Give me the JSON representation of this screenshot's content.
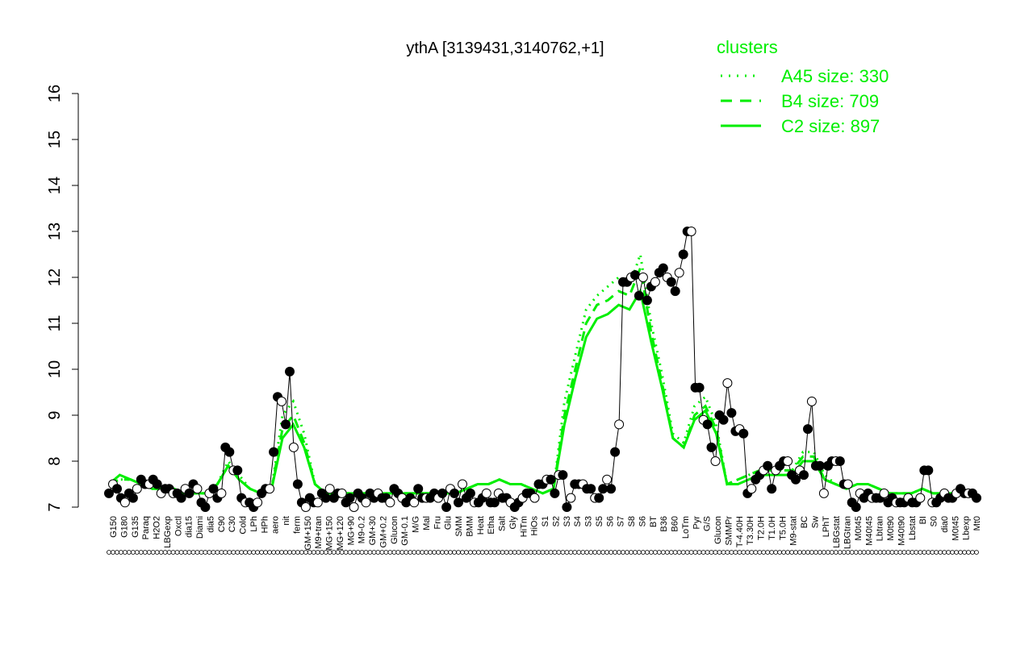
{
  "chart_data": {
    "type": "line",
    "title": "ythA [3139431,3140762,+1]",
    "xlabel": "",
    "ylabel": "",
    "ylim": [
      7,
      16
    ],
    "yticks": [
      7,
      8,
      9,
      10,
      11,
      12,
      13,
      14,
      15,
      16
    ],
    "grid": false,
    "legend": {
      "placement": "top-right",
      "title": "clusters",
      "entries": [
        {
          "label": "A45 size: 330",
          "style": "dotted",
          "color": "#00ee00"
        },
        {
          "label": "B4 size: 709",
          "style": "dashed",
          "color": "#00ee00"
        },
        {
          "label": "C2 size: 897",
          "style": "solid",
          "color": "#00ee00"
        }
      ]
    },
    "xtick_labels": [
      "G150",
      "G180",
      "G135",
      "Paraq",
      "H2O2",
      "LBGexp",
      "Oxctl",
      "dia15",
      "Diami",
      "dia5",
      "C90",
      "C30",
      "Cold",
      "LPh",
      "HPh",
      "aero",
      "nit",
      "ferm",
      "GM+150",
      "M9+tran",
      "MG+150",
      "MG+120",
      "MG+90",
      "M9-0.2",
      "GM+30",
      "GM+0.2",
      "Glucon",
      "GM-0.1",
      "M/G",
      "Mal",
      "Fru",
      "Glu",
      "SMM",
      "BMM",
      "Heat",
      "Etha",
      "Salt",
      "Gly",
      "HiTm",
      "HiOs",
      "S1",
      "S2",
      "S3",
      "S4",
      "S3",
      "S5",
      "S6",
      "S7",
      "S8",
      "S6",
      "BT",
      "B36",
      "B60",
      "LoTm",
      "Pyr",
      "G/S",
      "Glucon",
      "SMMPr",
      "T-4.40H",
      "T3.30H",
      "T2.0H",
      "T1.0H",
      "T5.0H",
      "M9-stat",
      "BC",
      "Sw",
      "LPhT",
      "LBGstat",
      "LBGtran",
      "M0t45",
      "M40t45",
      "Lbtran",
      "M0t90",
      "M40t90",
      "Lbstat",
      "BI",
      "S0",
      "dia0",
      "M0t45",
      "Lbexp",
      "Mt0"
    ],
    "series": [
      {
        "name": "ythA",
        "color": "#000000",
        "values": [
          7.3,
          7.5,
          7.4,
          7.2,
          7.1,
          7.3,
          7.2,
          7.4,
          7.6,
          7.5,
          7.5,
          7.6,
          7.5,
          7.3,
          7.4,
          7.4,
          7.3,
          7.3,
          7.2,
          7.4,
          7.3,
          7.5,
          7.4,
          7.1,
          7.0,
          7.3,
          7.4,
          7.2,
          7.3,
          8.3,
          8.2,
          7.8,
          7.8,
          7.2,
          7.1,
          7.1,
          7.0,
          7.1,
          7.3,
          7.4,
          7.4,
          8.2,
          9.4,
          9.3,
          8.8,
          9.95,
          8.3,
          7.5,
          7.1,
          7.0,
          7.2,
          7.1,
          7.1,
          7.3,
          7.2,
          7.4,
          7.2,
          7.3,
          7.3,
          7.1,
          7.2,
          7.0,
          7.3,
          7.2,
          7.1,
          7.3,
          7.2,
          7.3,
          7.2,
          7.2,
          7.1,
          7.4,
          7.3,
          7.2,
          7.1,
          7.2,
          7.1,
          7.4,
          7.2,
          7.2,
          7.2,
          7.3,
          7.2,
          7.3,
          7.0,
          7.4,
          7.3,
          7.1,
          7.5,
          7.2,
          7.3,
          7.1,
          7.1,
          7.2,
          7.3,
          7.1,
          7.1,
          7.3,
          7.2,
          7.2,
          7.1,
          7.0,
          7.1,
          7.2,
          7.3,
          7.3,
          7.2,
          7.5,
          7.5,
          7.6,
          7.6,
          7.3,
          7.7,
          7.7,
          7.0,
          7.2,
          7.5,
          7.5,
          7.5,
          7.4,
          7.4,
          7.2,
          7.2,
          7.4,
          7.6,
          7.4,
          8.2,
          8.8,
          11.9,
          11.9,
          12.0,
          12.05,
          11.6,
          12.0,
          11.5,
          11.8,
          11.9,
          12.1,
          12.2,
          12.0,
          11.9,
          11.7,
          12.1,
          12.5,
          13.0,
          13.0,
          9.6,
          9.6,
          8.9,
          8.8,
          8.3,
          8.0,
          9.0,
          8.9,
          9.7,
          9.05,
          8.65,
          8.7,
          8.6,
          7.3,
          7.4,
          7.6,
          7.7,
          7.8,
          7.9,
          7.4,
          7.8,
          7.9,
          8.0,
          8.0,
          7.7,
          7.6,
          7.8,
          7.7,
          8.7,
          9.3,
          7.9,
          7.9,
          7.3,
          7.9,
          8.0,
          8.0,
          8.0,
          7.5,
          7.5,
          7.1,
          7.0,
          7.3,
          7.2,
          7.3,
          7.2,
          7.2,
          7.2,
          7.3,
          7.1,
          7.2,
          7.1,
          7.1,
          7.1,
          7.2,
          7.1,
          7.1,
          7.2,
          7.8,
          7.8,
          7.1,
          7.1,
          7.2,
          7.3,
          7.2,
          7.2,
          7.3,
          7.4,
          7.3,
          7.3,
          7.3,
          7.2
        ]
      },
      {
        "name": "A45 size: 330",
        "color": "#00ee00",
        "style": "dotted",
        "values": [
          7.5,
          7.6,
          7.6,
          7.5,
          7.4,
          7.4,
          7.4,
          7.3,
          7.3,
          7.3,
          7.5,
          8.0,
          7.7,
          7.4,
          7.3,
          7.4,
          9.0,
          9.3,
          8.6,
          7.5,
          7.3,
          7.3,
          7.3,
          7.3,
          7.3,
          7.3,
          7.3,
          7.3,
          7.3,
          7.3,
          7.3,
          7.3,
          7.3,
          7.4,
          7.5,
          7.5,
          7.6,
          7.5,
          7.5,
          7.4,
          7.3,
          7.4,
          9.3,
          10.3,
          11.3,
          11.6,
          11.8,
          12.0,
          11.8,
          12.5,
          11.0,
          9.9,
          8.6,
          8.4,
          9.2,
          9.4,
          8.8,
          7.5,
          7.6,
          7.7,
          7.8,
          7.8,
          7.8,
          7.8,
          8.2,
          8.2,
          7.7,
          7.5,
          7.4,
          7.5,
          7.5,
          7.4,
          7.3,
          7.3,
          7.3,
          7.4,
          7.3,
          7.3,
          7.3,
          7.3,
          7.3
        ]
      },
      {
        "name": "B4 size: 709",
        "color": "#00ee00",
        "style": "dashed",
        "values": [
          7.5,
          7.6,
          7.6,
          7.5,
          7.4,
          7.4,
          7.4,
          7.3,
          7.3,
          7.3,
          7.5,
          7.9,
          7.6,
          7.4,
          7.3,
          7.4,
          8.7,
          9.0,
          8.4,
          7.5,
          7.3,
          7.3,
          7.3,
          7.3,
          7.3,
          7.3,
          7.3,
          7.3,
          7.3,
          7.3,
          7.3,
          7.3,
          7.3,
          7.4,
          7.5,
          7.5,
          7.6,
          7.5,
          7.5,
          7.4,
          7.3,
          7.4,
          9.0,
          10.0,
          11.0,
          11.4,
          11.5,
          11.7,
          11.6,
          12.2,
          10.8,
          9.7,
          8.5,
          8.3,
          9.0,
          9.2,
          8.7,
          7.5,
          7.6,
          7.7,
          7.8,
          7.8,
          7.8,
          7.8,
          8.1,
          8.1,
          7.6,
          7.5,
          7.4,
          7.5,
          7.5,
          7.4,
          7.3,
          7.3,
          7.3,
          7.4,
          7.3,
          7.3,
          7.3,
          7.3,
          7.3
        ]
      },
      {
        "name": "C2 size: 897",
        "color": "#00ee00",
        "style": "solid",
        "values": [
          7.5,
          7.7,
          7.6,
          7.5,
          7.4,
          7.4,
          7.4,
          7.3,
          7.3,
          7.3,
          7.5,
          7.9,
          7.6,
          7.4,
          7.3,
          7.4,
          8.5,
          8.8,
          8.3,
          7.5,
          7.3,
          7.3,
          7.3,
          7.3,
          7.3,
          7.3,
          7.3,
          7.3,
          7.3,
          7.3,
          7.3,
          7.3,
          7.3,
          7.4,
          7.5,
          7.5,
          7.6,
          7.5,
          7.5,
          7.4,
          7.3,
          7.4,
          8.8,
          9.8,
          10.7,
          11.1,
          11.2,
          11.4,
          11.3,
          11.7,
          10.6,
          9.6,
          8.5,
          8.3,
          8.9,
          9.1,
          8.6,
          7.5,
          7.5,
          7.6,
          7.7,
          7.7,
          7.7,
          7.7,
          8.0,
          8.0,
          7.6,
          7.5,
          7.4,
          7.5,
          7.5,
          7.4,
          7.3,
          7.3,
          7.3,
          7.4,
          7.3,
          7.3,
          7.3,
          7.3,
          7.3
        ]
      }
    ]
  }
}
